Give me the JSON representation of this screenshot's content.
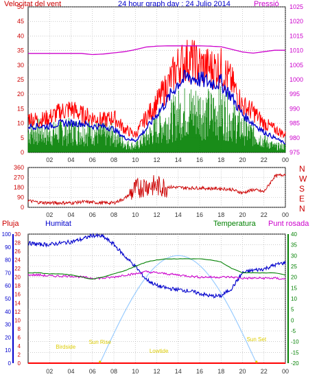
{
  "header": {
    "wind_label": "Velocitat del vent",
    "title": "24 hour graph day : 24 Julio 2014",
    "pressure_label": "Pressió"
  },
  "colors": {
    "wind": "#ff0000",
    "gust": "#ff0000",
    "avg": "#0000cc",
    "min": "#008000",
    "pressure": "#cc00cc",
    "direction": "#cc0000",
    "humidity": "#0000cc",
    "temperature": "#008000",
    "dewpoint": "#cc00cc",
    "rain": "#ff0000",
    "solar": "#99ccff",
    "sun_text": "#ddcc00",
    "grid": "#aaaaaa",
    "axis_left": "#cc0000",
    "axis_right": "#cc00cc",
    "axis_blue": "#0000cc",
    "axis_green": "#008000"
  },
  "labels": {
    "pluja": "Pluja",
    "humitat": "Humitat",
    "temperatura": "Temperatura",
    "punt_rosada": "Punt rosada",
    "birdside": "Birdside",
    "sun_rise": "Sun Rise",
    "lowtide": "Lowtide",
    "sun_set": "Sun Set",
    "compass": [
      "N",
      "W",
      "S",
      "E",
      "N"
    ]
  },
  "chart_data": [
    {
      "type": "line",
      "title": "24 hour graph day : 24 Julio 2014",
      "ylabel": "Velocitat del vent",
      "y2label": "Pressió",
      "x_ticks": [
        "02",
        "04",
        "06",
        "08",
        "10",
        "12",
        "14",
        "16",
        "18",
        "20",
        "22",
        "00"
      ],
      "ylim": [
        0,
        50
      ],
      "y_ticks": [
        0,
        5,
        10,
        15,
        20,
        25,
        30,
        35,
        40,
        45,
        50
      ],
      "y2lim": [
        975,
        1025
      ],
      "y2_ticks": [
        975,
        980,
        985,
        990,
        995,
        1000,
        1005,
        1010,
        1015,
        1020,
        1025
      ],
      "x": [
        0,
        1,
        2,
        3,
        4,
        5,
        6,
        7,
        8,
        9,
        10,
        11,
        12,
        13,
        14,
        15,
        16,
        17,
        18,
        19,
        20,
        21,
        22,
        23,
        24
      ],
      "series": [
        {
          "key": "gust",
          "values": [
            12,
            11,
            12,
            14,
            15,
            13,
            12,
            11,
            12,
            8,
            6,
            12,
            17,
            23,
            30,
            32,
            30,
            29,
            29,
            24,
            16,
            14,
            10,
            8,
            6
          ]
        },
        {
          "key": "avg",
          "values": [
            9,
            9,
            9,
            10,
            10,
            10,
            9,
            9,
            8,
            5,
            4,
            8,
            13,
            18,
            24,
            26,
            25,
            24,
            24,
            19,
            13,
            10,
            7,
            5,
            3
          ]
        },
        {
          "key": "min",
          "values": [
            7,
            7,
            6,
            7,
            7,
            7,
            7,
            6,
            6,
            3,
            2,
            5,
            8,
            10,
            13,
            14,
            14,
            13,
            14,
            11,
            8,
            6,
            4,
            2,
            2
          ]
        },
        {
          "key": "pressure",
          "values": [
            1009,
            1009,
            1009,
            1009,
            1009,
            1009,
            1008.6,
            1008.8,
            1009.2,
            1009.6,
            1010.3,
            1011.2,
            1011.5,
            1011.6,
            1011.6,
            1011.6,
            1011.6,
            1011.5,
            1011.3,
            1010.4,
            1009.5,
            1009.1,
            1009.6,
            1010.1,
            1010.1
          ]
        }
      ]
    },
    {
      "type": "line",
      "x_ticks": [
        "02",
        "04",
        "06",
        "08",
        "10",
        "12",
        "14",
        "16",
        "18",
        "20",
        "22",
        "00"
      ],
      "ylim": [
        0,
        360
      ],
      "y_ticks": [
        0,
        90,
        180,
        270,
        360
      ],
      "x": [
        0,
        1,
        2,
        3,
        4,
        5,
        6,
        7,
        8,
        9,
        10,
        11,
        12,
        13,
        14,
        15,
        16,
        17,
        18,
        19,
        20,
        21,
        22,
        23,
        24
      ],
      "series": [
        {
          "key": "direction",
          "values": [
            60,
            45,
            40,
            40,
            40,
            50,
            45,
            40,
            40,
            80,
            160,
            200,
            190,
            185,
            180,
            175,
            175,
            170,
            170,
            160,
            130,
            160,
            140,
            280,
            300
          ]
        }
      ]
    },
    {
      "type": "line",
      "x_ticks": [
        "02",
        "04",
        "06",
        "08",
        "10",
        "12",
        "14",
        "16",
        "18",
        "20",
        "22",
        "00"
      ],
      "pluja_ticks": [
        0,
        2,
        4,
        6,
        8,
        10,
        12,
        14,
        16,
        18,
        20,
        22,
        24,
        26,
        28,
        30
      ],
      "humidity_ticks": [
        0,
        10,
        20,
        30,
        40,
        50,
        60,
        70,
        80,
        90,
        100
      ],
      "temp_ticks": [
        -20,
        -15,
        -10,
        -5,
        0,
        5,
        10,
        15,
        20,
        25,
        30,
        35,
        40
      ],
      "humidity_lim": [
        0,
        100
      ],
      "temp_lim": [
        -20,
        40
      ],
      "x": [
        0,
        1,
        2,
        3,
        4,
        5,
        6,
        7,
        8,
        9,
        10,
        11,
        12,
        13,
        14,
        15,
        16,
        17,
        18,
        19,
        20,
        21,
        22,
        23,
        24
      ],
      "series": [
        {
          "key": "humidity",
          "values": [
            93,
            92,
            92,
            93,
            94,
            96,
            99,
            98,
            92,
            83,
            75,
            65,
            60,
            58,
            57,
            56,
            54,
            52,
            52,
            58,
            70,
            72,
            73,
            76,
            78
          ]
        },
        {
          "key": "temperature",
          "values": [
            22,
            22,
            21.5,
            21.5,
            21,
            20,
            19,
            20,
            21.5,
            23,
            25,
            27,
            28,
            28.5,
            28.5,
            28.5,
            28.5,
            28,
            27,
            24,
            22,
            22,
            22,
            22,
            21
          ]
        },
        {
          "key": "dewpoint",
          "values": [
            21,
            21,
            20.5,
            20.5,
            20.5,
            20,
            19.5,
            19.5,
            20,
            21,
            21.5,
            22.5,
            22,
            21.5,
            21,
            20.5,
            20,
            20,
            20,
            20,
            19.5,
            19.5,
            19.5,
            19.5,
            19
          ]
        },
        {
          "key": "rain",
          "values": [
            0,
            0,
            0,
            0,
            0,
            0,
            0,
            0,
            0,
            0,
            0,
            0,
            0,
            0,
            0,
            0,
            0,
            0,
            0,
            0,
            0,
            0,
            0,
            0,
            0
          ]
        }
      ]
    }
  ]
}
